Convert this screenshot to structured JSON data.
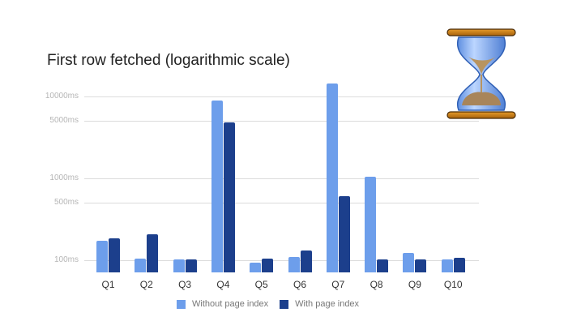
{
  "chart_data": {
    "type": "bar",
    "title": "First row fetched (logarithmic scale)",
    "xlabel": "",
    "ylabel": "",
    "yscale": "log",
    "ylim": [
      75,
      16000
    ],
    "yticks": [
      {
        "value": 10000,
        "label": "10000ms"
      },
      {
        "value": 5000,
        "label": "5000ms"
      },
      {
        "value": 1000,
        "label": "1000ms"
      },
      {
        "value": 500,
        "label": "500ms"
      },
      {
        "value": 100,
        "label": "100ms"
      }
    ],
    "categories": [
      "Q1",
      "Q2",
      "Q3",
      "Q4",
      "Q5",
      "Q6",
      "Q7",
      "Q8",
      "Q9",
      "Q10"
    ],
    "series": [
      {
        "name": "Without page index",
        "color": "#6d9eeb",
        "values": [
          173,
          105,
          102,
          8900,
          93,
          109,
          14300,
          1040,
          124,
          102
        ]
      },
      {
        "name": "With page index",
        "color": "#1c3f8c",
        "values": [
          185,
          207,
          102,
          4850,
          104,
          131,
          610,
          102,
          102,
          106
        ]
      }
    ],
    "grid": true,
    "legend_position": "bottom"
  },
  "decoration": {
    "icon": "hourglass-icon"
  }
}
